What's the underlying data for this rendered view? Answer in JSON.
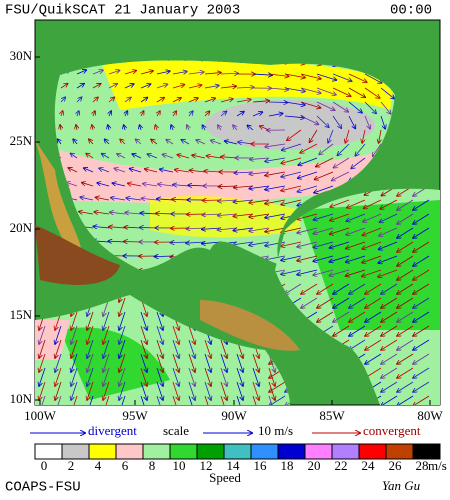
{
  "header": {
    "title": "FSU/QuikSCAT  21 January 2003",
    "time": "00:00"
  },
  "map": {
    "lat_labels": [
      "30N",
      "25N",
      "20N",
      "15N",
      "10N"
    ],
    "lon_labels": [
      "100W",
      "95W",
      "90W",
      "85W",
      "80W"
    ]
  },
  "legend": {
    "divergent": "divergent",
    "scale": "scale",
    "scale_value": "10 m/s",
    "convergent": "convergent",
    "speeds": [
      "0",
      "2",
      "4",
      "6",
      "8",
      "10",
      "12",
      "14",
      "16",
      "18",
      "20",
      "22",
      "24",
      "26",
      "28"
    ],
    "colors": [
      "#ffffff",
      "#c8c8c8",
      "#ffff00",
      "#ffc8c8",
      "#a0f0a0",
      "#30d830",
      "#00a000",
      "#40c0c0",
      "#3090ff",
      "#0000d0",
      "#ff80ff",
      "#b080ff",
      "#ff0000",
      "#c04000",
      "#000000"
    ],
    "unit": "m/s",
    "speed_label": "Speed"
  },
  "footer": {
    "left": "COAPS-FSU",
    "right": "Yan Gu"
  }
}
